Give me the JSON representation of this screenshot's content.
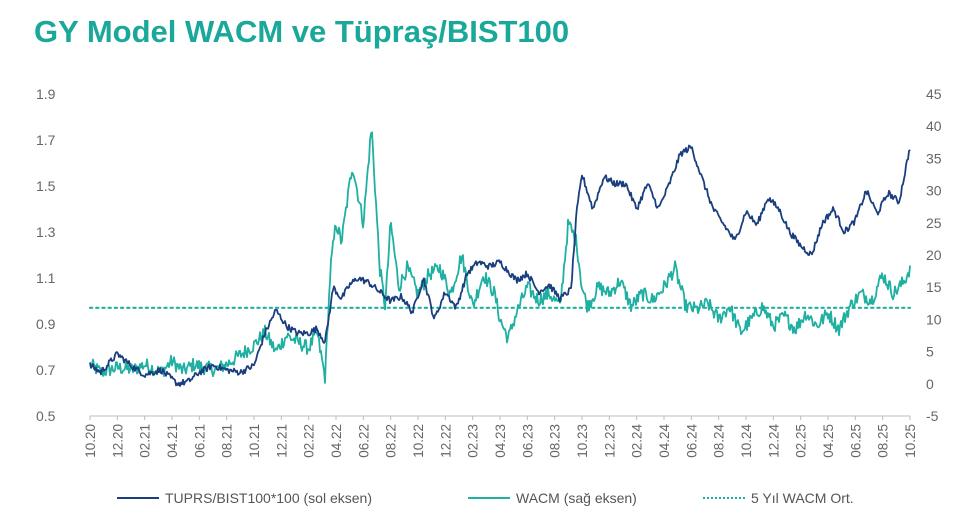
{
  "title": "GY Model WACM ve Tüpraş/BIST100",
  "colors": {
    "title": "#19a89a",
    "tuprs": "#1b3f7e",
    "wacm": "#1fb0a2",
    "avg": "#1fb0a2",
    "tick": "#666666"
  },
  "chart_data": {
    "type": "line",
    "title": "GY Model WACM ve Tüpraş/BIST100",
    "x_labels": [
      "10.20",
      "12.20",
      "02.21",
      "04.21",
      "06.21",
      "08.21",
      "10.21",
      "12.21",
      "02.22",
      "04.22",
      "06.22",
      "08.22",
      "10.22",
      "12.22",
      "02.23",
      "04.23",
      "06.23",
      "08.23",
      "10.23",
      "12.23",
      "02.24",
      "04.24",
      "06.24",
      "08.24",
      "10.24",
      "12.24",
      "02.25",
      "04.25",
      "06.25",
      "08.25",
      "10.25"
    ],
    "left_axis": {
      "ylim": [
        0.5,
        1.9
      ],
      "ticks": [
        "0.5",
        "0.7",
        "0.9",
        "1.1",
        "1.3",
        "1.5",
        "1.7",
        "1.9"
      ]
    },
    "right_axis": {
      "ylim": [
        -5,
        45
      ],
      "ticks": [
        "-5",
        "0",
        "5",
        "10",
        "15",
        "20",
        "25",
        "30",
        "35",
        "40",
        "45"
      ]
    },
    "series": [
      {
        "name": "TUPRS/BIST100*100 (sol eksen)",
        "axis": "left",
        "t": [
          0,
          0.4,
          1.0,
          1.6,
          2.0,
          2.6,
          3.2,
          3.6,
          4.0,
          4.5,
          5.0,
          5.5,
          6.0,
          6.4,
          6.8,
          7.2,
          7.6,
          8.0,
          8.3,
          8.6,
          8.9,
          9.2,
          9.5,
          9.8,
          10.2,
          10.6,
          11.0,
          11.4,
          11.8,
          12.2,
          12.6,
          13.0,
          13.4,
          13.8,
          14.2,
          14.6,
          15.0,
          15.3,
          15.6,
          16.0,
          16.4,
          16.8,
          17.2,
          17.6,
          17.8,
          18.0,
          18.4,
          18.8,
          19.2,
          19.6,
          20.0,
          20.4,
          20.8,
          21.2,
          21.6,
          22.0,
          22.4,
          22.8,
          23.2,
          23.6,
          24.0,
          24.4,
          24.8,
          25.2,
          25.6,
          26.0,
          26.4,
          26.8,
          27.2,
          27.6,
          28.0,
          28.4,
          28.8,
          29.2,
          29.6,
          30.0
        ],
        "values": [
          0.72,
          0.69,
          0.77,
          0.71,
          0.68,
          0.7,
          0.64,
          0.65,
          0.69,
          0.72,
          0.7,
          0.69,
          0.72,
          0.86,
          0.96,
          0.89,
          0.86,
          0.86,
          0.88,
          0.82,
          1.06,
          1.01,
          1.07,
          1.1,
          1.08,
          1.04,
          1.0,
          1.02,
          0.95,
          1.1,
          0.92,
          1.04,
          0.97,
          1.12,
          1.17,
          1.15,
          1.17,
          1.13,
          1.09,
          1.12,
          1.04,
          1.07,
          1.01,
          1.05,
          1.38,
          1.55,
          1.4,
          1.54,
          1.51,
          1.51,
          1.4,
          1.51,
          1.4,
          1.51,
          1.64,
          1.67,
          1.53,
          1.4,
          1.33,
          1.26,
          1.39,
          1.33,
          1.45,
          1.4,
          1.3,
          1.24,
          1.2,
          1.34,
          1.4,
          1.3,
          1.35,
          1.48,
          1.38,
          1.47,
          1.43,
          1.67
        ]
      },
      {
        "name": "WACM (sağ eksen)",
        "axis": "right",
        "t": [
          0,
          0.4,
          1.0,
          1.6,
          2.0,
          2.6,
          3.0,
          3.4,
          3.8,
          4.2,
          4.6,
          5.0,
          5.5,
          6.0,
          6.4,
          6.8,
          7.2,
          7.6,
          8.0,
          8.3,
          8.6,
          8.8,
          9.0,
          9.2,
          9.6,
          10.0,
          10.3,
          10.6,
          10.8,
          11.0,
          11.3,
          11.6,
          12.0,
          12.4,
          12.8,
          13.2,
          13.6,
          14.0,
          14.4,
          14.8,
          15.0,
          15.3,
          15.6,
          16.0,
          16.4,
          16.8,
          17.2,
          17.5,
          17.8,
          18.0,
          18.2,
          18.6,
          19.0,
          19.4,
          19.8,
          20.2,
          20.6,
          21.0,
          21.4,
          21.8,
          22.2,
          22.6,
          23.0,
          23.4,
          23.8,
          24.2,
          24.6,
          25.0,
          25.4,
          25.8,
          26.2,
          26.6,
          27.0,
          27.4,
          27.8,
          28.2,
          28.6,
          29.0,
          29.4,
          29.8,
          30.0
        ],
        "values": [
          3.0,
          1.8,
          2.5,
          2.2,
          3.0,
          1.8,
          3.5,
          2.0,
          3.0,
          2.5,
          2.2,
          3.0,
          4.5,
          6.0,
          8.0,
          5.0,
          7.5,
          6.5,
          5.5,
          8.0,
          1.0,
          18.0,
          25.0,
          22.0,
          34.0,
          25.0,
          40.0,
          18.0,
          12.0,
          25.0,
          15.0,
          18.0,
          14.0,
          17.0,
          18.0,
          14.0,
          20.0,
          12.0,
          17.0,
          14.0,
          10.0,
          7.0,
          11.0,
          15.0,
          13.0,
          14.0,
          12.0,
          25.0,
          22.0,
          15.0,
          12.0,
          15.0,
          14.0,
          16.0,
          12.0,
          14.0,
          13.0,
          15.0,
          18.0,
          12.0,
          11.5,
          12.5,
          10.0,
          12.0,
          8.0,
          10.0,
          12.0,
          9.0,
          10.5,
          8.5,
          11.0,
          9.0,
          11.0,
          8.5,
          12.0,
          14.0,
          13.0,
          17.0,
          14.0,
          16.0,
          18.0
        ]
      },
      {
        "name": "5 Yıl WACM Ort.",
        "axis": "right",
        "style": "dotted",
        "constant": 11.8
      }
    ]
  },
  "legend": {
    "tuprs": "TUPRS/BIST100*100 (sol eksen)",
    "wacm": "WACM (sağ eksen)",
    "avg": "5 Yıl WACM Ort."
  }
}
